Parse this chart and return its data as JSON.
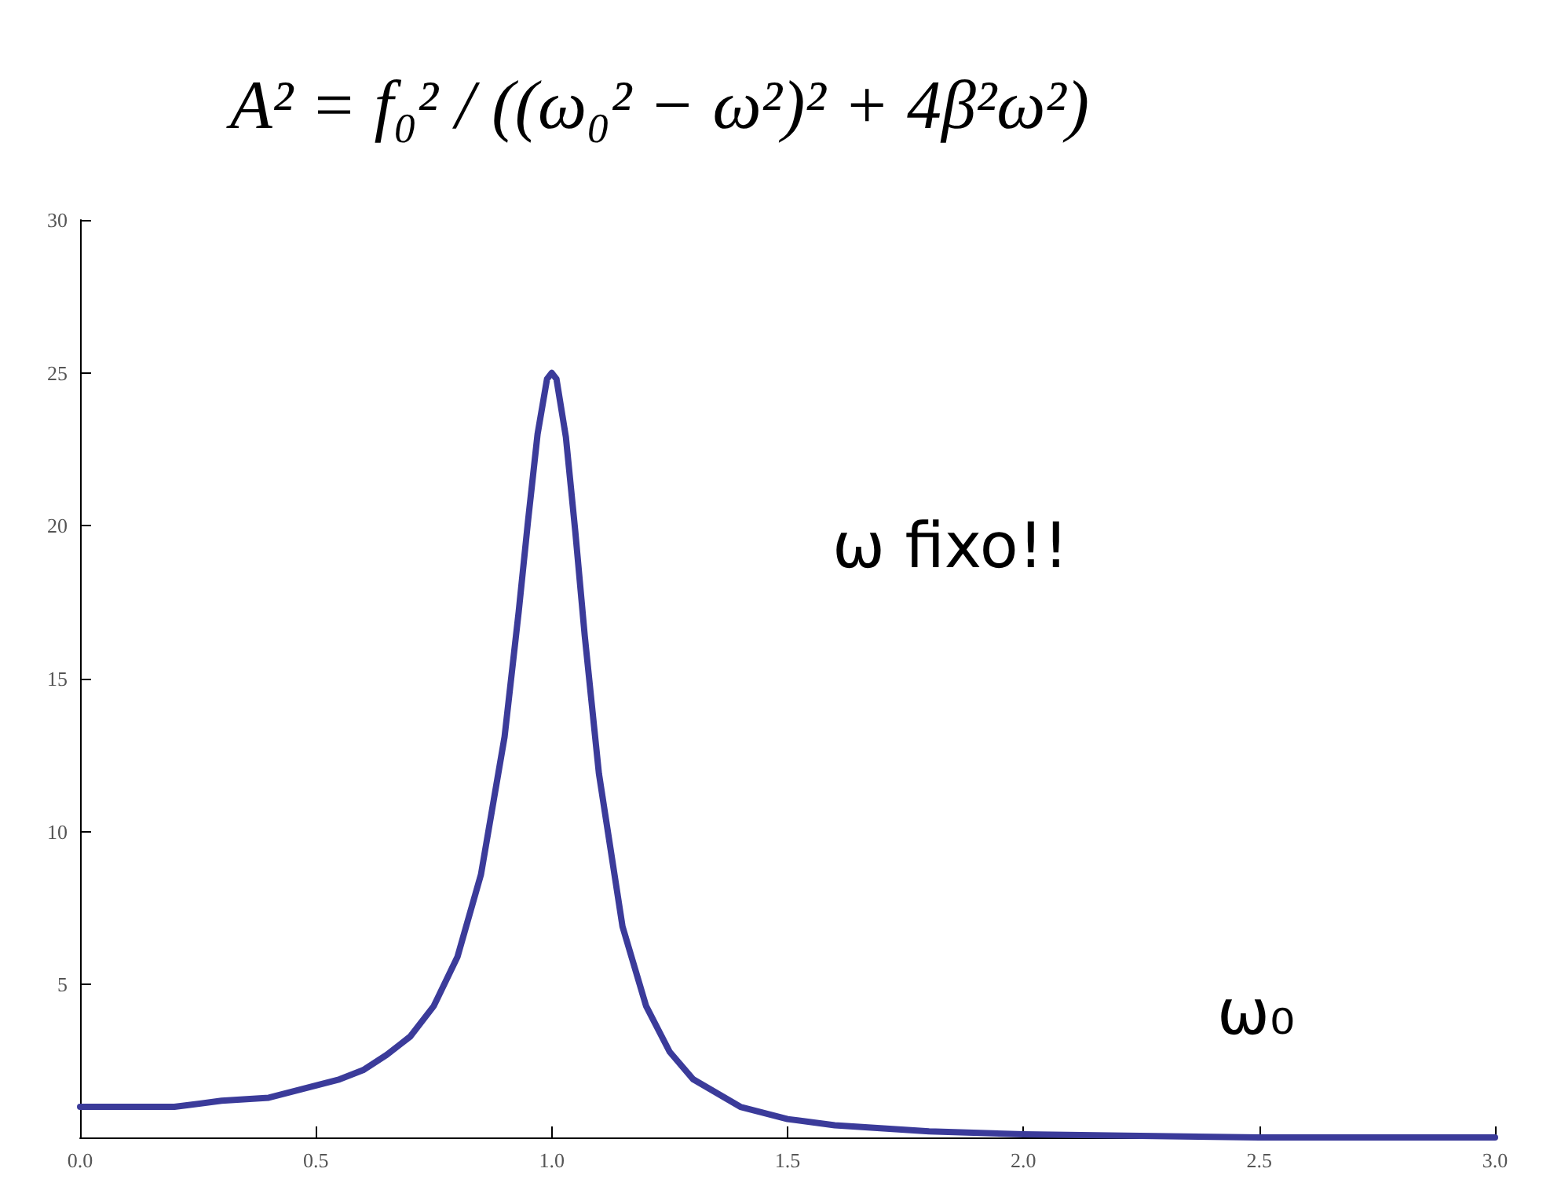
{
  "chart_data": {
    "type": "line",
    "title": "A² = f₀² / ((ω₀² − ω²)² + 4β²ω²)",
    "xlabel": "ω₀",
    "annotations": [
      "ω fixo!!"
    ],
    "series": [
      {
        "color": "#3b3b9a",
        "x": [
          0,
          0.1,
          0.2,
          0.3,
          0.4,
          0.5,
          0.55,
          0.6,
          0.65,
          0.7,
          0.75,
          0.8,
          0.85,
          0.9,
          0.93,
          0.95,
          0.97,
          0.99,
          1.0,
          1.01,
          1.03,
          1.05,
          1.07,
          1.1,
          1.15,
          1.2,
          1.25,
          1.3,
          1.4,
          1.5,
          1.6,
          1.8,
          2.0,
          2.5,
          3.0
        ],
        "values": [
          1.0,
          1.0,
          1.0,
          1.2,
          1.3,
          1.7,
          1.9,
          2.2,
          2.7,
          3.3,
          4.3,
          5.9,
          8.6,
          13.1,
          17.2,
          20.2,
          23.0,
          24.8,
          25.0,
          24.8,
          22.9,
          19.8,
          16.4,
          11.9,
          6.9,
          4.3,
          2.8,
          1.9,
          1.0,
          0.6,
          0.4,
          0.2,
          0.1,
          0.0,
          0.0
        ]
      }
    ],
    "xlim": [
      0,
      3
    ],
    "xticks": [
      {
        "value": 0,
        "label": "0.0"
      },
      {
        "value": 0.5,
        "label": "0.5"
      },
      {
        "value": 1,
        "label": "1.0"
      },
      {
        "value": 1.5,
        "label": "1.5"
      },
      {
        "value": 2,
        "label": "2.0"
      },
      {
        "value": 2.5,
        "label": "2.5"
      },
      {
        "value": 3,
        "label": "3.0"
      }
    ],
    "ylim": [
      0,
      30
    ],
    "yticks": [
      {
        "value": 0,
        "label": null
      },
      5,
      10,
      15,
      20,
      25,
      30
    ],
    "grid": false,
    "marker": "none",
    "line_style": "solid"
  }
}
